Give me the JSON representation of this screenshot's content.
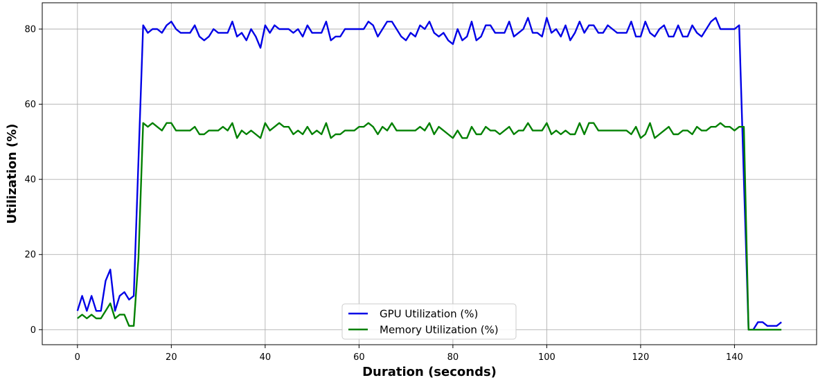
{
  "chart_data": {
    "type": "line",
    "title": "",
    "xlabel": "Duration (seconds)",
    "ylabel": "Utilization (%)",
    "xlim": [
      -7.5,
      157.5
    ],
    "ylim": [
      -4,
      87
    ],
    "xticks": [
      0,
      20,
      40,
      60,
      80,
      100,
      120,
      140
    ],
    "yticks": [
      0,
      20,
      40,
      60,
      80
    ],
    "grid": true,
    "legend_position": "lower-center",
    "x": [
      0,
      1,
      2,
      3,
      4,
      5,
      6,
      7,
      8,
      9,
      10,
      11,
      12,
      13,
      14,
      15,
      16,
      17,
      18,
      19,
      20,
      21,
      22,
      23,
      24,
      25,
      26,
      27,
      28,
      29,
      30,
      31,
      32,
      33,
      34,
      35,
      36,
      37,
      38,
      39,
      40,
      41,
      42,
      43,
      44,
      45,
      46,
      47,
      48,
      49,
      50,
      51,
      52,
      53,
      54,
      55,
      56,
      57,
      58,
      59,
      60,
      61,
      62,
      63,
      64,
      65,
      66,
      67,
      68,
      69,
      70,
      71,
      72,
      73,
      74,
      75,
      76,
      77,
      78,
      79,
      80,
      81,
      82,
      83,
      84,
      85,
      86,
      87,
      88,
      89,
      90,
      91,
      92,
      93,
      94,
      95,
      96,
      97,
      98,
      99,
      100,
      101,
      102,
      103,
      104,
      105,
      106,
      107,
      108,
      109,
      110,
      111,
      112,
      113,
      114,
      115,
      116,
      117,
      118,
      119,
      120,
      121,
      122,
      123,
      124,
      125,
      126,
      127,
      128,
      129,
      130,
      131,
      132,
      133,
      134,
      135,
      136,
      137,
      138,
      139,
      140,
      141,
      142,
      143,
      144,
      145,
      146,
      147,
      148,
      149,
      150
    ],
    "series": [
      {
        "name": "GPU Utilization (%)",
        "color": "#0000e6",
        "values": [
          5,
          9,
          5,
          9,
          5,
          5,
          13,
          16,
          5,
          9,
          10,
          8,
          9,
          45,
          81,
          79,
          80,
          80,
          79,
          81,
          82,
          80,
          79,
          79,
          79,
          81,
          78,
          77,
          78,
          80,
          79,
          79,
          79,
          82,
          78,
          79,
          77,
          80,
          78,
          75,
          81,
          79,
          81,
          80,
          80,
          80,
          79,
          80,
          78,
          81,
          79,
          79,
          79,
          82,
          77,
          78,
          78,
          80,
          80,
          80,
          80,
          80,
          82,
          81,
          78,
          80,
          82,
          82,
          80,
          78,
          77,
          79,
          78,
          81,
          80,
          82,
          79,
          78,
          79,
          77,
          76,
          80,
          77,
          78,
          82,
          77,
          78,
          81,
          81,
          79,
          79,
          79,
          82,
          78,
          79,
          80,
          83,
          79,
          79,
          78,
          83,
          79,
          80,
          78,
          81,
          77,
          79,
          82,
          79,
          81,
          81,
          79,
          79,
          81,
          80,
          79,
          79,
          79,
          82,
          78,
          78,
          82,
          79,
          78,
          80,
          81,
          78,
          78,
          81,
          78,
          78,
          81,
          79,
          78,
          80,
          82,
          83,
          80,
          80,
          80,
          80,
          81,
          40,
          0,
          0,
          2,
          2,
          1,
          1,
          1,
          2
        ]
      },
      {
        "name": "Memory Utilization (%)",
        "color": "#008000",
        "values": [
          3,
          4,
          3,
          4,
          3,
          3,
          5,
          7,
          3,
          4,
          4,
          1,
          1,
          19,
          55,
          54,
          55,
          54,
          53,
          55,
          55,
          53,
          53,
          53,
          53,
          54,
          52,
          52,
          53,
          53,
          53,
          54,
          53,
          55,
          51,
          53,
          52,
          53,
          52,
          51,
          55,
          53,
          54,
          55,
          54,
          54,
          52,
          53,
          52,
          54,
          52,
          53,
          52,
          55,
          51,
          52,
          52,
          53,
          53,
          53,
          54,
          54,
          55,
          54,
          52,
          54,
          53,
          55,
          53,
          53,
          53,
          53,
          53,
          54,
          53,
          55,
          52,
          54,
          53,
          52,
          51,
          53,
          51,
          51,
          54,
          52,
          52,
          54,
          53,
          53,
          52,
          53,
          54,
          52,
          53,
          53,
          55,
          53,
          53,
          53,
          55,
          52,
          53,
          52,
          53,
          52,
          52,
          55,
          52,
          55,
          55,
          53,
          53,
          53,
          53,
          53,
          53,
          53,
          52,
          54,
          51,
          52,
          55,
          51,
          52,
          53,
          54,
          52,
          52,
          53,
          53,
          52,
          54,
          53,
          53,
          54,
          54,
          55,
          54,
          54,
          53,
          54,
          54,
          0,
          0,
          0,
          0,
          0,
          0,
          0,
          0
        ]
      }
    ]
  }
}
